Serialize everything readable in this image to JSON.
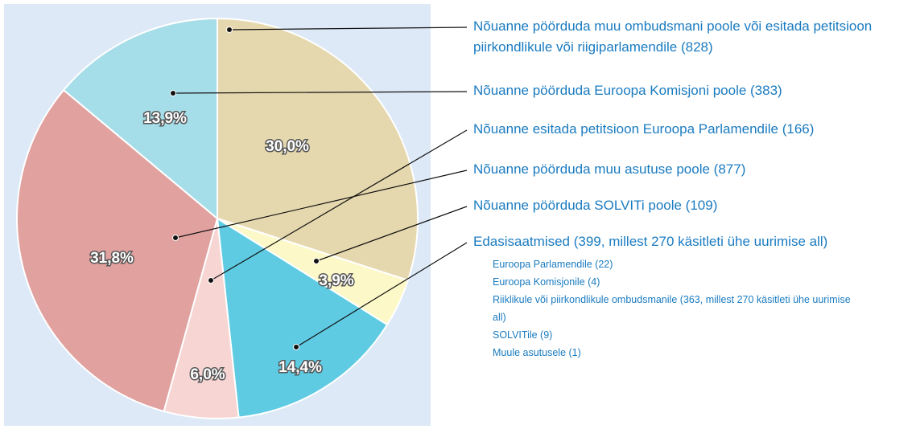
{
  "chart_data": {
    "type": "pie",
    "categories": [
      "Nõuanne pöörduda muu ombudsmani poole või esitada petitsioon piirkondlikule või riigiparlamendile (828)",
      "Nõuanne pöörduda SOLVITi poole (109)",
      "Edasisaatmised (399, millest 270 käsitleti ühe uurimise all)",
      "Nõuanne esitada petitsioon Euroopa Parlamendile (166)",
      "Nõuanne pöörduda muu asutuse poole (877)",
      "Nõuanne pöörduda Euroopa Komisjoni poole (383)"
    ],
    "values": [
      30.0,
      3.9,
      14.4,
      6.0,
      31.8,
      13.9
    ],
    "value_labels": [
      "30,0%",
      "3,9%",
      "14,4%",
      "6,0%",
      "31,8%",
      "13,9%"
    ],
    "colors": [
      "#e6d8ae",
      "#fdf8c8",
      "#5ecbe3",
      "#f7d5d3",
      "#e0a19f",
      "#a5dde8"
    ],
    "sub_items": [
      "Euroopa Parlamendile (22)",
      "Euroopa Komisjonile (4)",
      "Riiklikule või piirkondlikule ombudsmanile (363, millest 270 käsitleti ühe uurimise all)",
      "SOLVITile (9)",
      "Muule asutusele (1)"
    ]
  }
}
